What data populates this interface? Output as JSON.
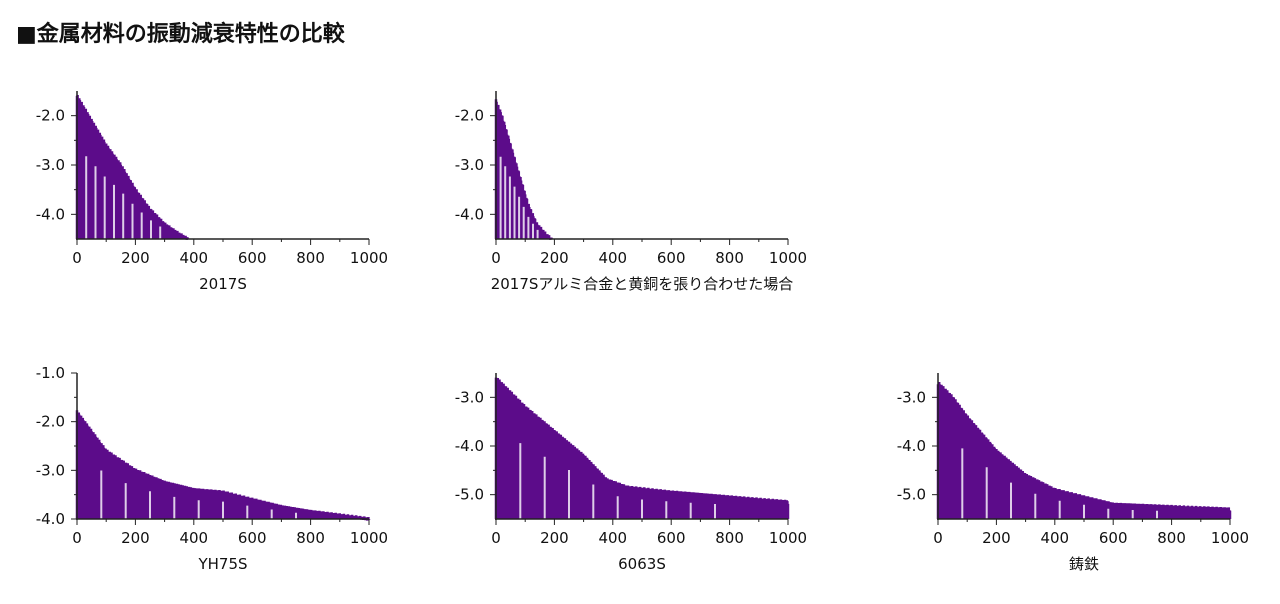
{
  "title": "■金属材料の振動減衰特性の比較",
  "chart_data": [
    {
      "type": "area",
      "xlabel": "2017S",
      "xticks": [
        "0",
        "200",
        "400",
        "600",
        "800",
        "1000"
      ],
      "yticks": [
        "-2.0",
        "-3.0",
        "-4.0"
      ],
      "xlim": [
        0,
        1000
      ],
      "ylim": [
        -4.5,
        -1.5
      ],
      "color": "#5c0c8a",
      "envelope": [
        [
          0,
          -1.6
        ],
        [
          20,
          -1.8
        ],
        [
          60,
          -2.2
        ],
        [
          100,
          -2.6
        ],
        [
          150,
          -3.0
        ],
        [
          200,
          -3.5
        ],
        [
          250,
          -3.9
        ],
        [
          300,
          -4.2
        ],
        [
          350,
          -4.4
        ],
        [
          380,
          -4.5
        ]
      ],
      "decay_to": 380
    },
    {
      "type": "area",
      "xlabel": "2017Sアルミ合金と黄銅を張り合わせた場合",
      "xticks": [
        "0",
        "200",
        "400",
        "600",
        "800",
        "1000"
      ],
      "yticks": [
        "-2.0",
        "-3.0",
        "-4.0"
      ],
      "xlim": [
        0,
        1000
      ],
      "ylim": [
        -4.5,
        -1.5
      ],
      "color": "#5c0c8a",
      "envelope": [
        [
          0,
          -1.7
        ],
        [
          20,
          -2.0
        ],
        [
          50,
          -2.6
        ],
        [
          80,
          -3.2
        ],
        [
          110,
          -3.8
        ],
        [
          140,
          -4.2
        ],
        [
          170,
          -4.4
        ],
        [
          190,
          -4.5
        ]
      ],
      "decay_to": 190
    },
    {
      "type": "area",
      "xlabel": "YH75S",
      "xticks": [
        "0",
        "200",
        "400",
        "600",
        "800",
        "1000"
      ],
      "yticks": [
        "-1.0",
        "-2.0",
        "-3.0",
        "-4.0"
      ],
      "xlim": [
        0,
        1000
      ],
      "ylim": [
        -4.0,
        -1.0
      ],
      "color": "#5c0c8a",
      "envelope": [
        [
          0,
          -1.8
        ],
        [
          50,
          -2.2
        ],
        [
          100,
          -2.6
        ],
        [
          150,
          -2.8
        ],
        [
          200,
          -3.0
        ],
        [
          300,
          -3.25
        ],
        [
          400,
          -3.4
        ],
        [
          500,
          -3.45
        ],
        [
          600,
          -3.6
        ],
        [
          700,
          -3.75
        ],
        [
          800,
          -3.85
        ],
        [
          900,
          -3.92
        ],
        [
          1000,
          -4.0
        ]
      ],
      "decay_to": 1000
    },
    {
      "type": "area",
      "xlabel": "6063S",
      "xticks": [
        "0",
        "200",
        "400",
        "600",
        "800",
        "1000"
      ],
      "yticks": [
        "-3.0",
        "-4.0",
        "-5.0"
      ],
      "xlim": [
        0,
        1000
      ],
      "ylim": [
        -5.5,
        -2.5
      ],
      "color": "#5c0c8a",
      "envelope": [
        [
          0,
          -2.6
        ],
        [
          50,
          -2.9
        ],
        [
          100,
          -3.2
        ],
        [
          200,
          -3.7
        ],
        [
          300,
          -4.2
        ],
        [
          380,
          -4.7
        ],
        [
          450,
          -4.85
        ],
        [
          600,
          -4.95
        ],
        [
          800,
          -5.05
        ],
        [
          1000,
          -5.15
        ]
      ],
      "decay_to": 1000
    },
    {
      "type": "area",
      "xlabel": "鋳鉄",
      "xticks": [
        "0",
        "200",
        "400",
        "600",
        "800",
        "1000"
      ],
      "yticks": [
        "-3.0",
        "-4.0",
        "-5.0"
      ],
      "xlim": [
        0,
        1000
      ],
      "ylim": [
        -5.5,
        -2.5
      ],
      "color": "#5c0c8a",
      "envelope": [
        [
          0,
          -2.7
        ],
        [
          50,
          -3.0
        ],
        [
          100,
          -3.4
        ],
        [
          200,
          -4.1
        ],
        [
          300,
          -4.6
        ],
        [
          400,
          -4.9
        ],
        [
          500,
          -5.05
        ],
        [
          600,
          -5.2
        ],
        [
          800,
          -5.25
        ],
        [
          1000,
          -5.3
        ]
      ],
      "decay_to": 1000
    }
  ]
}
